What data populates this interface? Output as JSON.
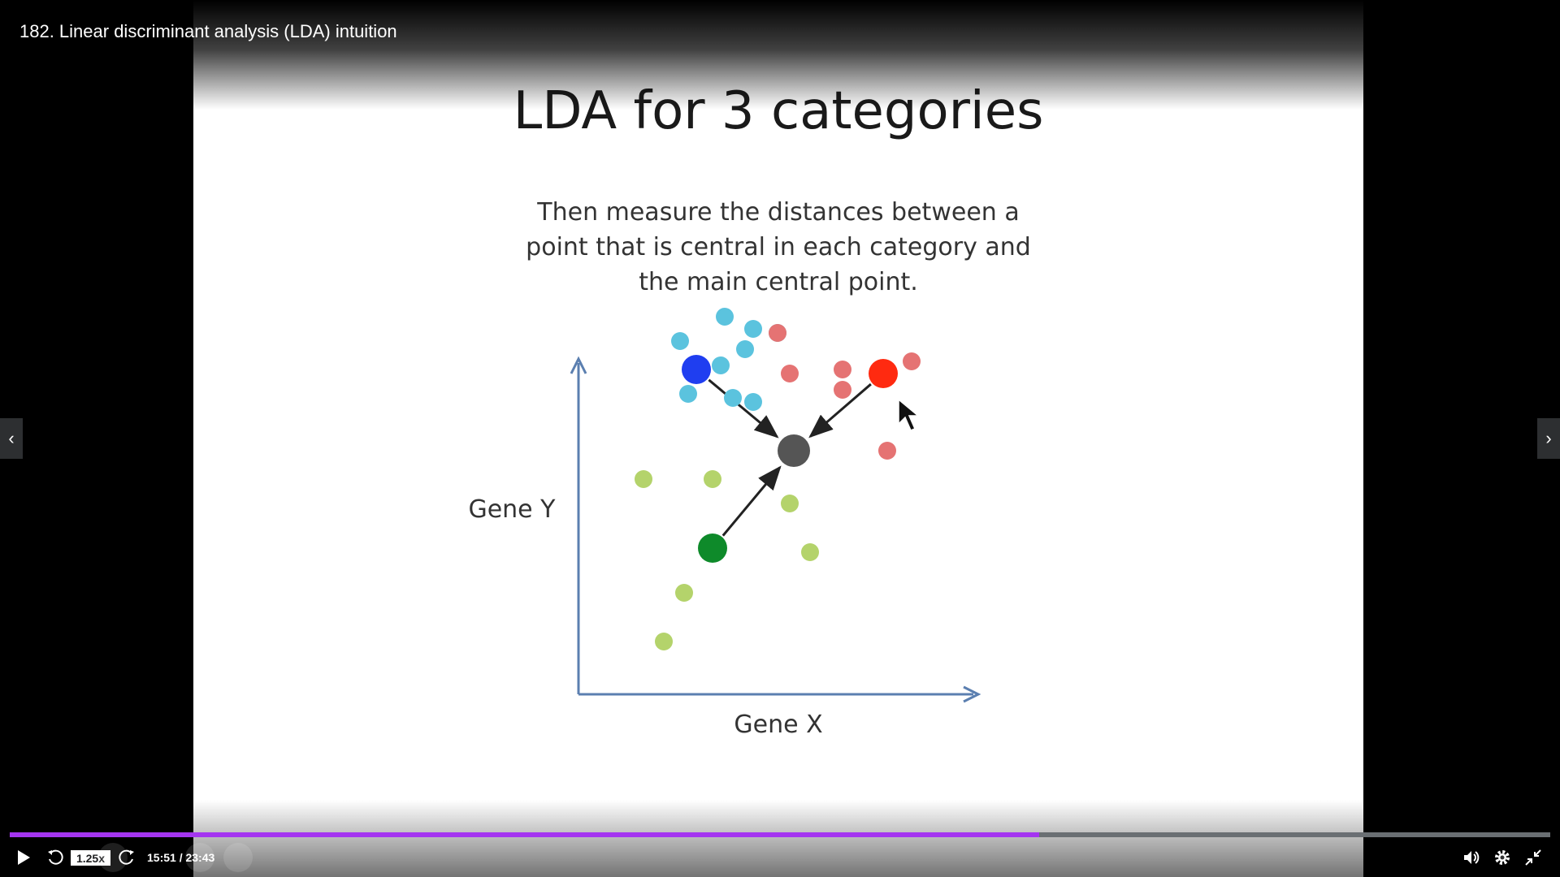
{
  "video": {
    "title": "182. Linear discriminant analysis (LDA) intuition"
  },
  "slide": {
    "title": "LDA for 3 categories",
    "text_lines": [
      "Then measure the distances between a",
      "point that is central in each category and",
      "the main central point."
    ],
    "chart_data": {
      "type": "scatter",
      "xlabel": "Gene X",
      "ylabel": "Gene Y",
      "grid": false,
      "legend": "none",
      "series": [
        {
          "color": "#5bc3de",
          "points": [
            [
              3.6,
              9.3
            ],
            [
              4.3,
              9.0
            ],
            [
              4.9,
              8.9
            ],
            [
              4.1,
              8.5
            ],
            [
              3.5,
              8.1
            ],
            [
              2.5,
              8.7
            ],
            [
              2.7,
              7.4
            ],
            [
              3.8,
              7.3
            ],
            [
              4.3,
              7.2
            ]
          ]
        },
        {
          "color": "#e57373",
          "points": [
            [
              4.9,
              8.9
            ],
            [
              5.2,
              7.9
            ],
            [
              6.5,
              8.0
            ],
            [
              8.2,
              8.2
            ],
            [
              7.6,
              6.0
            ],
            [
              6.5,
              7.5
            ]
          ]
        },
        {
          "color": "#b4d36b",
          "points": [
            [
              1.6,
              5.3
            ],
            [
              3.3,
              5.3
            ],
            [
              5.2,
              4.7
            ],
            [
              5.7,
              3.5
            ],
            [
              2.6,
              2.5
            ],
            [
              2.1,
              1.3
            ]
          ]
        }
      ],
      "centroids": [
        {
          "color": "#1f3ef0",
          "point": [
            2.9,
            8.0
          ]
        },
        {
          "color": "#ff2a10",
          "point": [
            7.5,
            7.9
          ]
        },
        {
          "color": "#0e8a2a",
          "point": [
            3.3,
            3.6
          ]
        }
      ],
      "main_centroid": {
        "color": "#555555",
        "point": [
          5.3,
          6.0
        ]
      },
      "xlim": [
        0,
        10
      ],
      "ylim": [
        0,
        10
      ]
    }
  },
  "player": {
    "playback_speed": "1.25x",
    "time_display": "15:51 / 23:43",
    "progress": 0.668,
    "accent": "#a435f0"
  }
}
